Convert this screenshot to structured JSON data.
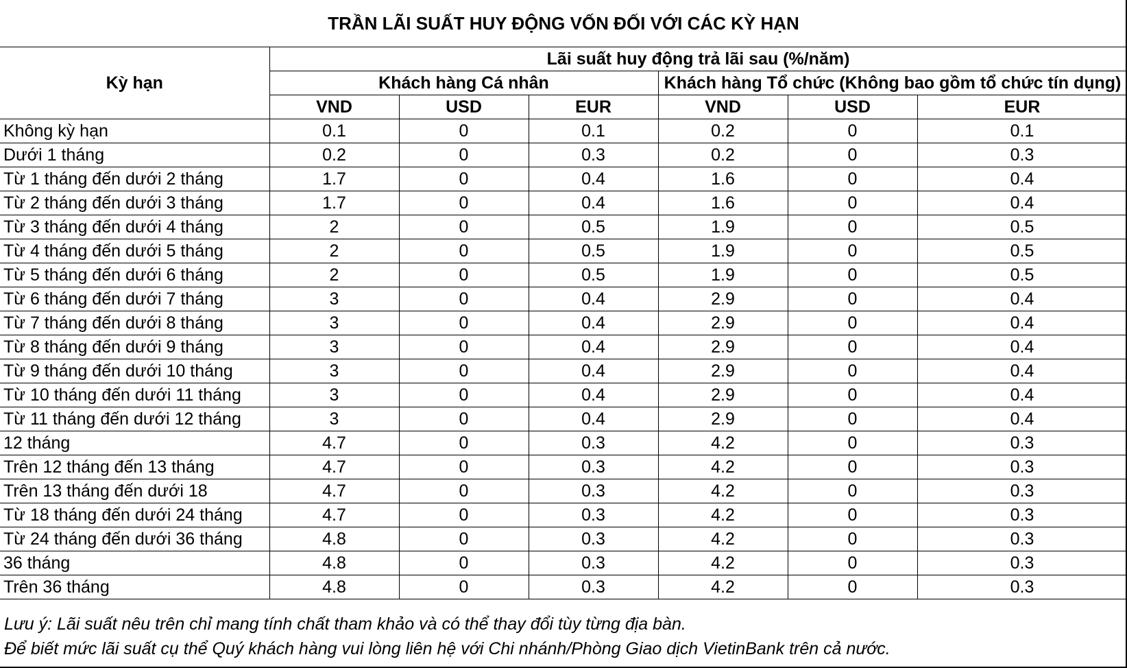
{
  "title": "TRẦN LÃI SUẤT HUY ĐỘNG VỐN ĐỐI VỚI CÁC KỲ HẠN",
  "header": {
    "term": "Kỳ hạn",
    "rate_group": "Lãi suất huy động trả lãi sau (%/năm)",
    "individual": "Khách hàng Cá nhân",
    "organization": "Khách hàng Tổ chức (Không bao gồm tổ chức tín dụng)",
    "currencies": [
      "VND",
      "USD",
      "EUR",
      "VND",
      "USD",
      "EUR"
    ]
  },
  "rows": [
    {
      "term": "Không kỳ hạn",
      "values": [
        "0.1",
        "0",
        "0.1",
        "0.2",
        "0",
        "0.1"
      ]
    },
    {
      "term": "Dưới 1 tháng",
      "values": [
        "0.2",
        "0",
        "0.3",
        "0.2",
        "0",
        "0.3"
      ]
    },
    {
      "term": "Từ 1 tháng đến dưới 2 tháng",
      "values": [
        "1.7",
        "0",
        "0.4",
        "1.6",
        "0",
        "0.4"
      ]
    },
    {
      "term": "Từ 2 tháng đến dưới 3 tháng",
      "values": [
        "1.7",
        "0",
        "0.4",
        "1.6",
        "0",
        "0.4"
      ]
    },
    {
      "term": "Từ 3 tháng đến dưới 4 tháng",
      "values": [
        "2",
        "0",
        "0.5",
        "1.9",
        "0",
        "0.5"
      ]
    },
    {
      "term": "Từ 4 tháng đến dưới 5 tháng",
      "values": [
        "2",
        "0",
        "0.5",
        "1.9",
        "0",
        "0.5"
      ]
    },
    {
      "term": "Từ 5 tháng đến dưới 6 tháng",
      "values": [
        "2",
        "0",
        "0.5",
        "1.9",
        "0",
        "0.5"
      ]
    },
    {
      "term": "Từ 6 tháng đến dưới 7 tháng",
      "values": [
        "3",
        "0",
        "0.4",
        "2.9",
        "0",
        "0.4"
      ]
    },
    {
      "term": "Từ 7 tháng đến dưới 8 tháng",
      "values": [
        "3",
        "0",
        "0.4",
        "2.9",
        "0",
        "0.4"
      ]
    },
    {
      "term": "Từ 8 tháng đến dưới 9 tháng",
      "values": [
        "3",
        "0",
        "0.4",
        "2.9",
        "0",
        "0.4"
      ]
    },
    {
      "term": "Từ 9 tháng đến dưới 10 tháng",
      "values": [
        "3",
        "0",
        "0.4",
        "2.9",
        "0",
        "0.4"
      ]
    },
    {
      "term": "Từ 10 tháng đến dưới 11 tháng",
      "values": [
        "3",
        "0",
        "0.4",
        "2.9",
        "0",
        "0.4"
      ]
    },
    {
      "term": "Từ 11 tháng đến dưới 12 tháng",
      "values": [
        "3",
        "0",
        "0.4",
        "2.9",
        "0",
        "0.4"
      ]
    },
    {
      "term": "12 tháng",
      "values": [
        "4.7",
        "0",
        "0.3",
        "4.2",
        "0",
        "0.3"
      ]
    },
    {
      "term": "Trên 12 tháng đến 13 tháng",
      "values": [
        "4.7",
        "0",
        "0.3",
        "4.2",
        "0",
        "0.3"
      ]
    },
    {
      "term": "Trên 13 tháng đến dưới 18",
      "values": [
        "4.7",
        "0",
        "0.3",
        "4.2",
        "0",
        "0.3"
      ]
    },
    {
      "term": "Từ 18 tháng đến dưới 24 tháng",
      "values": [
        "4.7",
        "0",
        "0.3",
        "4.2",
        "0",
        "0.3"
      ]
    },
    {
      "term": "Từ 24 tháng đến dưới 36 tháng",
      "values": [
        "4.8",
        "0",
        "0.3",
        "4.2",
        "0",
        "0.3"
      ]
    },
    {
      "term": "36 tháng",
      "values": [
        "4.8",
        "0",
        "0.3",
        "4.2",
        "0",
        "0.3"
      ]
    },
    {
      "term": "Trên 36 tháng",
      "values": [
        "4.8",
        "0",
        "0.3",
        "4.2",
        "0",
        "0.3"
      ]
    }
  ],
  "notes": [
    "Lưu ý: Lãi suất nêu trên chỉ mang tính chất tham khảo và có thể thay đổi tùy từng địa bàn.",
    "Để biết mức lãi suất cụ thể Quý khách hàng vui lòng liên hệ với Chi nhánh/Phòng Giao dịch VietinBank trên cả nước."
  ]
}
